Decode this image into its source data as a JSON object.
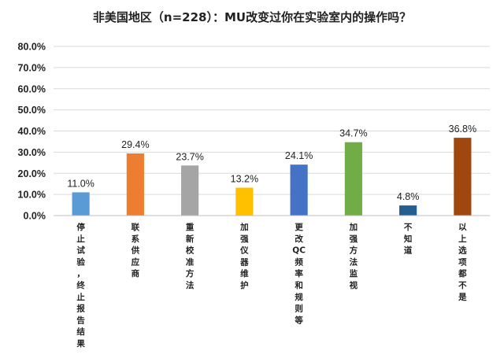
{
  "chart_data": {
    "type": "bar",
    "title": "非美国地区（n=228）：MU改变过你在实验室内的操作吗？",
    "xlabel": "",
    "ylabel": "",
    "ylim": [
      0,
      80
    ],
    "ytick_labels": [
      "0.0%",
      "10.0%",
      "20.0%",
      "30.0%",
      "40.0%",
      "50.0%",
      "60.0%",
      "70.0%",
      "80.0%"
    ],
    "categories": [
      "停止试验，终止报告结果",
      "联系供应商",
      "重新校准方法",
      "加强仪器维护",
      "更改QC频率和规则等",
      "加强方法监视",
      "不知道",
      "以上选项都不是"
    ],
    "category_display": [
      [
        "停",
        "止",
        "试",
        "验",
        "，",
        "终",
        "止",
        "报",
        "告",
        "结",
        "果"
      ],
      [
        "联",
        "系",
        "供",
        "应",
        "商"
      ],
      [
        "重",
        "新",
        "校",
        "准",
        "方",
        "法"
      ],
      [
        "加",
        "强",
        "仪",
        "器",
        "维",
        "护"
      ],
      [
        "更",
        "改",
        "QC",
        "频",
        "率",
        "和",
        "规",
        "则",
        "等"
      ],
      [
        "加",
        "强",
        "方",
        "法",
        "监",
        "视"
      ],
      [
        "不",
        "知",
        "道"
      ],
      [
        "以",
        "上",
        "选",
        "项",
        "都",
        "不",
        "是"
      ]
    ],
    "values": [
      11.0,
      29.4,
      23.7,
      13.2,
      24.1,
      34.7,
      4.8,
      36.8
    ],
    "value_labels": [
      "11.0%",
      "29.4%",
      "23.7%",
      "13.2%",
      "24.1%",
      "34.7%",
      "4.8%",
      "36.8%"
    ],
    "colors": [
      "#5b9bd5",
      "#ed7d31",
      "#a5a5a5",
      "#ffc000",
      "#4472c4",
      "#70ad47",
      "#255e91",
      "#9e480e"
    ],
    "grid": true,
    "legend": "none"
  }
}
